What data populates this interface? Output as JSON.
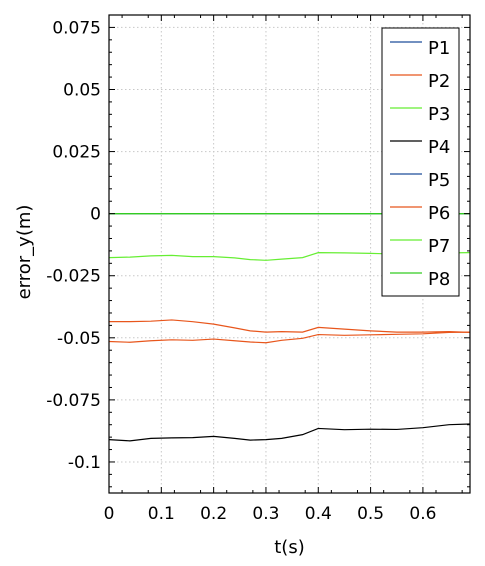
{
  "chart_data": {
    "type": "line",
    "xlabel": "t(s)",
    "ylabel": "error_y(m)",
    "xlim": [
      0,
      0.69
    ],
    "ylim": [
      -0.1125,
      0.08
    ],
    "xticks": [
      0,
      0.1,
      0.2,
      0.3,
      0.4,
      0.5,
      0.6
    ],
    "xtick_labels": [
      "0",
      "0.1",
      "0.2",
      "0.3",
      "0.4",
      "0.5",
      "0.6"
    ],
    "yticks": [
      0.075,
      0.05,
      0.025,
      0,
      -0.025,
      -0.05,
      -0.075,
      -0.1
    ],
    "ytick_labels": [
      "0.075",
      "0.05",
      "0.025",
      "0",
      "-0.025",
      "-0.05",
      "-0.075",
      "-0.1"
    ],
    "grid": true,
    "legend_position": "top-right",
    "series": [
      {
        "name": "P1",
        "color": "#1f4e9a",
        "x": [
          0,
          0.69
        ],
        "y": [
          0,
          0
        ]
      },
      {
        "name": "P2",
        "color": "#e8561c",
        "x": [
          0,
          0.04,
          0.08,
          0.12,
          0.16,
          0.2,
          0.24,
          0.27,
          0.3,
          0.33,
          0.37,
          0.4,
          0.45,
          0.5,
          0.55,
          0.6,
          0.65,
          0.69
        ],
        "y": [
          -0.0435,
          -0.0435,
          -0.0433,
          -0.0428,
          -0.0435,
          -0.0445,
          -0.046,
          -0.0472,
          -0.0477,
          -0.0475,
          -0.0477,
          -0.0458,
          -0.0465,
          -0.0472,
          -0.0477,
          -0.0477,
          -0.0475,
          -0.0478
        ]
      },
      {
        "name": "P3",
        "color": "#66ee33",
        "x": [
          0,
          0.04,
          0.08,
          0.12,
          0.16,
          0.2,
          0.24,
          0.27,
          0.3,
          0.33,
          0.37,
          0.4,
          0.45,
          0.5,
          0.55,
          0.6,
          0.65,
          0.69
        ],
        "y": [
          -0.0177,
          -0.0175,
          -0.017,
          -0.0168,
          -0.0173,
          -0.0173,
          -0.0178,
          -0.0185,
          -0.0188,
          -0.0183,
          -0.0177,
          -0.0157,
          -0.0158,
          -0.016,
          -0.0163,
          -0.016,
          -0.0158,
          -0.0157
        ]
      },
      {
        "name": "P4",
        "color": "#000000",
        "x": [
          0,
          0.04,
          0.08,
          0.12,
          0.16,
          0.2,
          0.24,
          0.27,
          0.3,
          0.33,
          0.37,
          0.4,
          0.45,
          0.5,
          0.55,
          0.6,
          0.65,
          0.69
        ],
        "y": [
          -0.091,
          -0.0915,
          -0.0905,
          -0.0903,
          -0.0902,
          -0.0897,
          -0.0905,
          -0.0912,
          -0.091,
          -0.0905,
          -0.089,
          -0.0865,
          -0.087,
          -0.0868,
          -0.0869,
          -0.0862,
          -0.085,
          -0.0847
        ]
      },
      {
        "name": "P5",
        "color": "#1f4e9a",
        "x": [
          0,
          0.69
        ],
        "y": [
          0,
          0
        ]
      },
      {
        "name": "P6",
        "color": "#e8561c",
        "x": [
          0,
          0.04,
          0.08,
          0.12,
          0.16,
          0.2,
          0.24,
          0.27,
          0.3,
          0.33,
          0.37,
          0.4,
          0.45,
          0.5,
          0.55,
          0.6,
          0.65,
          0.69
        ],
        "y": [
          -0.0515,
          -0.0518,
          -0.0512,
          -0.0508,
          -0.051,
          -0.0505,
          -0.0512,
          -0.0517,
          -0.052,
          -0.051,
          -0.0502,
          -0.0487,
          -0.049,
          -0.0488,
          -0.0486,
          -0.0484,
          -0.0478,
          -0.0477
        ]
      },
      {
        "name": "P7",
        "color": "#66ee33",
        "x": [
          0,
          0.69
        ],
        "y": [
          0,
          0
        ]
      },
      {
        "name": "P8",
        "color": "#33cc22",
        "x": [
          0,
          0.69
        ],
        "y": [
          0,
          0
        ]
      }
    ]
  }
}
